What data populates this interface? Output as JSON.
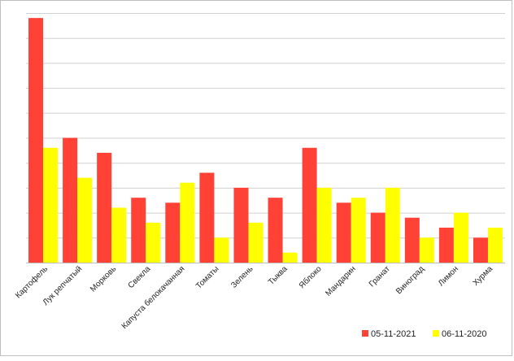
{
  "chart_data": {
    "type": "bar",
    "title": "",
    "xlabel": "",
    "ylabel": "",
    "categories": [
      "Картофель",
      "Лук репчатый",
      "Морковь",
      "Свекла",
      "Капуста белокачанная",
      "Томаты",
      "Зелень",
      "Тыква",
      "Яблоко",
      "Мандарин",
      "Гранат",
      "Виноград",
      "Лимон",
      "Хурма"
    ],
    "series": [
      {
        "name": "05-11-2021",
        "color": "#ff4136",
        "values": [
          9.8,
          5.0,
          4.4,
          2.6,
          2.4,
          3.6,
          3.0,
          2.6,
          4.6,
          2.4,
          2.0,
          1.8,
          1.4,
          1.0
        ]
      },
      {
        "name": "06-11-2020",
        "color": "#ffff00",
        "values": [
          4.6,
          3.4,
          2.2,
          1.6,
          3.2,
          1.0,
          1.6,
          0.4,
          3.0,
          2.6,
          3.0,
          1.0,
          2.0,
          1.4
        ]
      }
    ],
    "ylim": [
      0,
      10
    ],
    "y_gridlines": 10,
    "grid": true,
    "y_tick_labels_visible": false,
    "legend": "bottom-right"
  }
}
